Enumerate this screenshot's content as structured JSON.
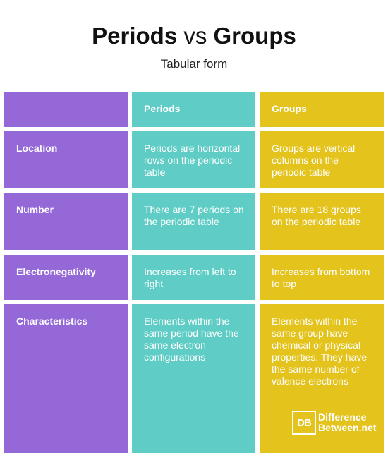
{
  "header": {
    "title_left": "Periods",
    "title_vs": "vs",
    "title_right": "Groups",
    "subtitle": "Tabular form"
  },
  "table": {
    "columns": [
      "",
      "Periods",
      "Groups"
    ],
    "rows": [
      {
        "label": "Location",
        "periods": "Periods are horizontal rows on the periodic table",
        "groups": "Groups are vertical columns on the periodic table"
      },
      {
        "label": "Number",
        "periods": "There are 7 periods on the periodic table",
        "groups": "There are 18 groups on the periodic table"
      },
      {
        "label": "Electronegativity",
        "periods": "Increases from left to right",
        "groups": "Increases from bottom to top"
      },
      {
        "label": "Characteristics",
        "periods": "Elements within the same period have the same electron configurations",
        "groups": "Elements within the same group have chemical or physical properties. They have the same number of valence electrons"
      }
    ]
  },
  "logo": {
    "mark": "DB",
    "line1": "Difference",
    "line2": "Between.net"
  },
  "colors": {
    "label_column": "#9568d8",
    "periods_column": "#5fcdc5",
    "groups_column": "#e3c31c"
  }
}
